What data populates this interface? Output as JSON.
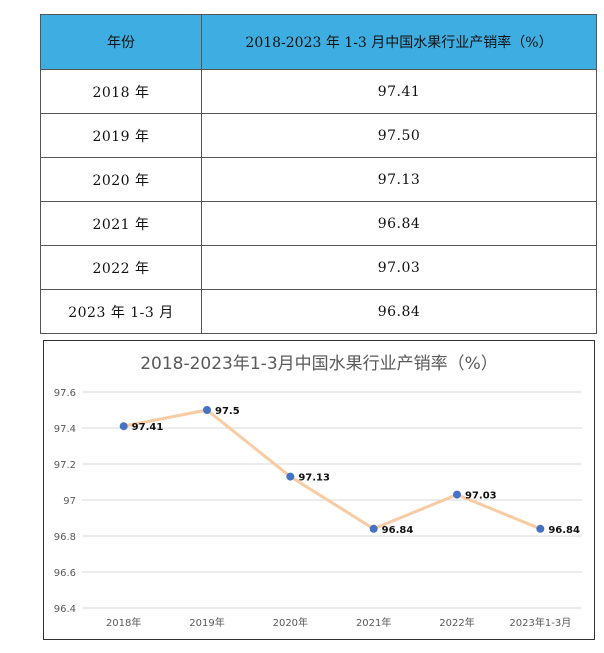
{
  "table": {
    "header_year": "年份",
    "header_value": "2018-2023 年 1-3 月中国水果行业产销率（%）",
    "rows": [
      {
        "year": "2018 年",
        "value": "97.41"
      },
      {
        "year": "2019 年",
        "value": "97.50"
      },
      {
        "year": "2020 年",
        "value": "97.13"
      },
      {
        "year": "2021 年",
        "value": "96.84"
      },
      {
        "year": "2022 年",
        "value": "97.03"
      },
      {
        "year": "2023 年 1-3 月",
        "value": "96.84"
      }
    ]
  },
  "chart_data": {
    "type": "line",
    "title": "2018-2023年1-3月中国水果行业产销率（%）",
    "categories": [
      "2018年",
      "2019年",
      "2020年",
      "2021年",
      "2022年",
      "2023年1-3月"
    ],
    "series": [
      {
        "values": [
          97.41,
          97.5,
          97.13,
          96.84,
          97.03,
          96.84
        ],
        "labels": [
          "97.41",
          "97.5",
          "97.13",
          "96.84",
          "97.03",
          "96.84"
        ]
      }
    ],
    "yticks": [
      "96.4",
      "96.6",
      "96.8",
      "97",
      "97.2",
      "97.4",
      "97.6"
    ],
    "ylim": [
      96.4,
      97.6
    ],
    "grid": true,
    "colors": {
      "line": "#f8cba3",
      "marker": "#4472c4",
      "grid": "#d9d9d9"
    }
  }
}
